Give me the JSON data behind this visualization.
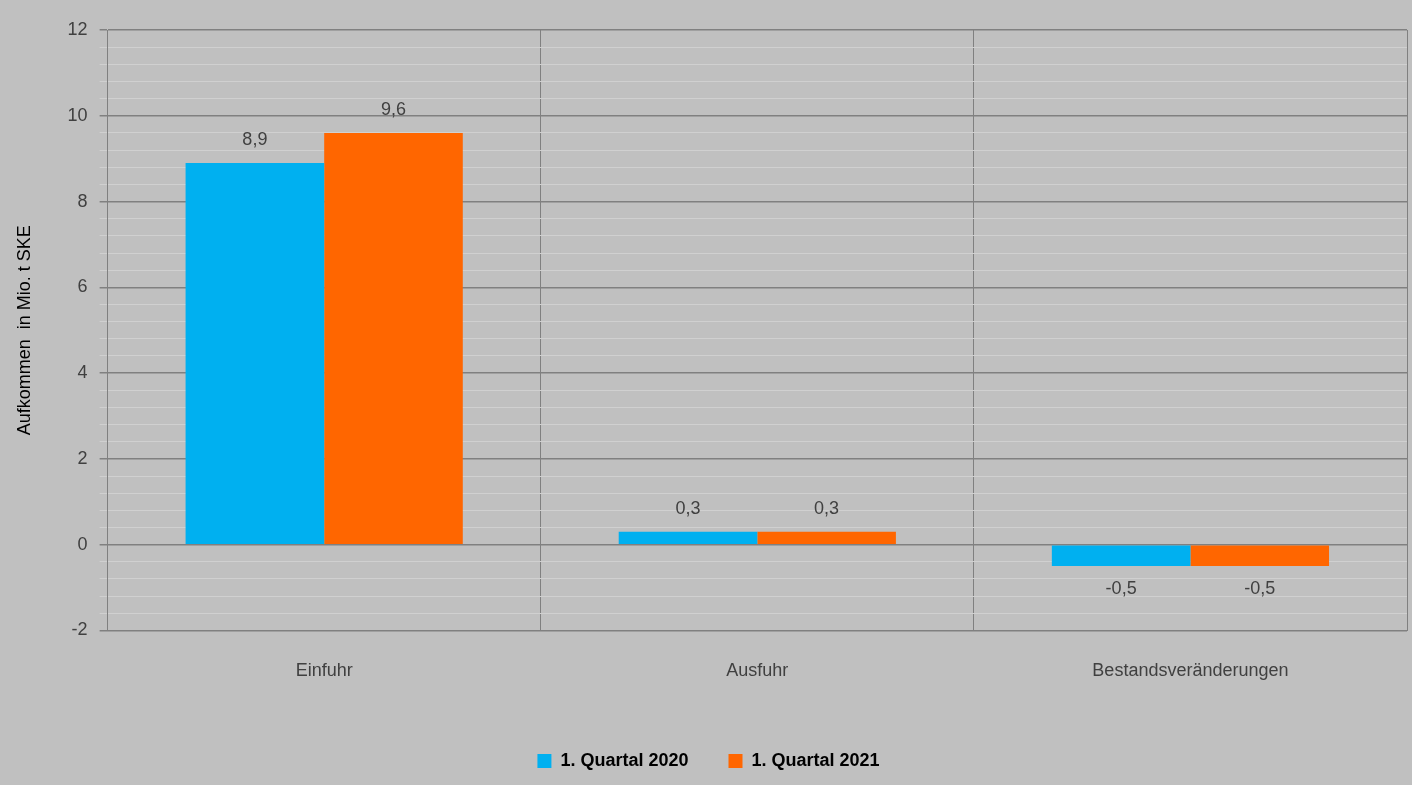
{
  "chart_data": {
    "type": "bar",
    "ylabel": "Aufkommen  in Mio. t SKE",
    "categories": [
      "Einfuhr",
      "Ausfuhr",
      "Bestandsveränderungen"
    ],
    "series": [
      {
        "name": "1. Quartal 2020",
        "color": "#00b0f0",
        "values": [
          8.9,
          0.3,
          -0.5
        ],
        "value_labels": [
          "8,9",
          "0,3",
          "-0,5"
        ]
      },
      {
        "name": "1. Quartal 2021",
        "color": "#ff6600",
        "values": [
          9.6,
          0.3,
          -0.5
        ],
        "value_labels": [
          "9,6",
          "0,3",
          "-0,5"
        ]
      }
    ],
    "ylim": [
      -2,
      12
    ],
    "yticks": [
      -2,
      {
        "value": -1.6,
        "label": null
      },
      {
        "value": -1.2,
        "label": null
      },
      {
        "value": -0.8,
        "label": null
      },
      {
        "value": -0.4,
        "label": null
      },
      0,
      {
        "value": 0.4,
        "label": null
      },
      {
        "value": 0.8,
        "label": null
      },
      {
        "value": 1.2,
        "label": null
      },
      {
        "value": 1.6,
        "label": null
      },
      2,
      {
        "value": 2.4,
        "label": null
      },
      {
        "value": 2.8,
        "label": null
      },
      {
        "value": 3.2,
        "label": null
      },
      {
        "value": 3.6,
        "label": null
      },
      4,
      {
        "value": 4.4,
        "label": null
      },
      {
        "value": 4.8,
        "label": null
      },
      {
        "value": 5.2,
        "label": null
      },
      {
        "value": 5.6,
        "label": null
      },
      6,
      {
        "value": 6.4,
        "label": null
      },
      {
        "value": 6.8,
        "label": null
      },
      {
        "value": 7.2,
        "label": null
      },
      {
        "value": 7.6,
        "label": null
      },
      8,
      {
        "value": 8.4,
        "label": null
      },
      {
        "value": 8.8,
        "label": null
      },
      {
        "value": 9.2,
        "label": null
      },
      {
        "value": 9.6,
        "label": null
      },
      10,
      {
        "value": 10.4,
        "label": null
      },
      {
        "value": 10.8,
        "label": null
      },
      {
        "value": 11.2,
        "label": null
      },
      {
        "value": 11.6,
        "label": null
      },
      12
    ],
    "grid": true,
    "legend": "bottom"
  }
}
